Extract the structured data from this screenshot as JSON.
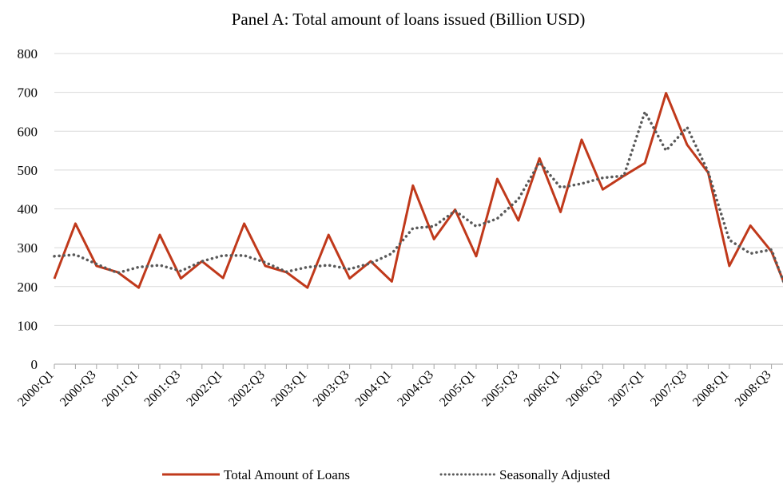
{
  "chart_data": {
    "type": "line",
    "title": "Panel A: Total amount of loans issued (Billion USD)",
    "xlabel": "",
    "ylabel": "",
    "ylim": [
      0,
      800
    ],
    "yticks": [
      0,
      100,
      200,
      300,
      400,
      500,
      600,
      700,
      800
    ],
    "grid": true,
    "legend_position": "bottom",
    "categories": [
      "2000:Q1",
      "2000:Q2",
      "2000:Q3",
      "2000:Q4",
      "2001:Q1",
      "2001:Q2",
      "2001:Q3",
      "2001:Q4",
      "2002:Q1",
      "2002:Q2",
      "2002:Q3",
      "2002:Q4",
      "2003:Q1",
      "2003:Q2",
      "2003:Q3",
      "2003:Q4",
      "2004:Q1",
      "2004:Q2",
      "2004:Q3",
      "2004:Q4",
      "2005:Q1",
      "2005:Q2",
      "2005:Q3",
      "2005:Q4",
      "2006:Q1",
      "2006:Q2",
      "2006:Q3",
      "2006:Q4",
      "2007:Q1",
      "2007:Q2",
      "2007:Q3",
      "2007:Q4",
      "2008:Q1",
      "2008:Q2",
      "2008:Q3",
      "2008:Q4"
    ],
    "tick_labels": [
      "2000:Q1",
      "2000:Q3",
      "2001:Q1",
      "2001:Q3",
      "2002:Q1",
      "2002:Q3",
      "2003:Q1",
      "2003:Q3",
      "2004:Q1",
      "2004:Q3",
      "2005:Q1",
      "2005:Q3",
      "2006:Q1",
      "2006:Q3",
      "2007:Q1",
      "2007:Q3",
      "2008:Q1",
      "2008:Q3"
    ],
    "series": [
      {
        "name": "Total Amount of Loans",
        "style": "solid",
        "color": "#C0391B",
        "values": [
          220,
          362,
          253,
          237,
          197,
          333,
          221,
          265,
          222,
          362,
          253,
          237,
          197,
          333,
          221,
          265,
          213,
          460,
          322,
          398,
          278,
          477,
          370,
          530,
          392,
          578,
          450,
          485,
          518,
          698,
          565,
          493,
          253,
          357,
          290,
          155
        ]
      },
      {
        "name": "Seasonally Adjusted",
        "style": "dotted",
        "color": "#595959",
        "values": [
          278,
          282,
          258,
          235,
          250,
          255,
          240,
          265,
          280,
          280,
          262,
          238,
          250,
          255,
          245,
          260,
          285,
          350,
          355,
          395,
          355,
          375,
          425,
          520,
          455,
          465,
          480,
          485,
          650,
          550,
          610,
          495,
          320,
          285,
          295,
          150
        ]
      }
    ]
  }
}
